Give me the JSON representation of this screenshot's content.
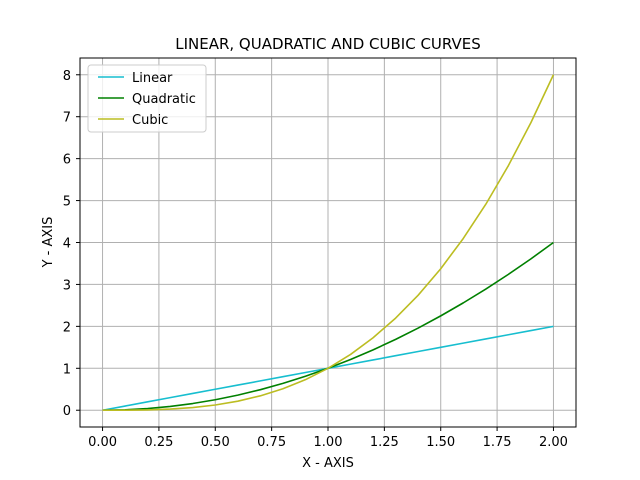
{
  "chart_data": {
    "type": "line",
    "title": "LINEAR, QUADRATIC AND CUBIC CURVES",
    "xlabel": "X - AXIS",
    "ylabel": "Y - AXIS",
    "xlim": [
      -0.1,
      2.1
    ],
    "ylim": [
      -0.4,
      8.4
    ],
    "xticks": [
      0.0,
      0.25,
      0.5,
      0.75,
      1.0,
      1.25,
      1.5,
      1.75,
      2.0
    ],
    "xtick_labels": [
      "0.00",
      "0.25",
      "0.50",
      "0.75",
      "1.00",
      "1.25",
      "1.50",
      "1.75",
      "2.00"
    ],
    "yticks": [
      0,
      1,
      2,
      3,
      4,
      5,
      6,
      7,
      8
    ],
    "ytick_labels": [
      "0",
      "1",
      "2",
      "3",
      "4",
      "5",
      "6",
      "7",
      "8"
    ],
    "grid": true,
    "legend_position": "top-left",
    "x": [
      0.0,
      0.1,
      0.2,
      0.3,
      0.4,
      0.5,
      0.6,
      0.7,
      0.8,
      0.9,
      1.0,
      1.1,
      1.2,
      1.3,
      1.4,
      1.5,
      1.6,
      1.7,
      1.8,
      1.9,
      2.0
    ],
    "series": [
      {
        "name": "Linear",
        "color": "#17becf",
        "values": [
          0.0,
          0.1,
          0.2,
          0.3,
          0.4,
          0.5,
          0.6,
          0.7,
          0.8,
          0.9,
          1.0,
          1.1,
          1.2,
          1.3,
          1.4,
          1.5,
          1.6,
          1.7,
          1.8,
          1.9,
          2.0
        ]
      },
      {
        "name": "Quadratic",
        "color": "#008000",
        "values": [
          0.0,
          0.01,
          0.04,
          0.09,
          0.16,
          0.25,
          0.36,
          0.49,
          0.64,
          0.81,
          1.0,
          1.21,
          1.44,
          1.69,
          1.96,
          2.25,
          2.56,
          2.89,
          3.24,
          3.61,
          4.0
        ]
      },
      {
        "name": "Cubic",
        "color": "#bcbd22",
        "values": [
          0.0,
          0.001,
          0.008,
          0.027,
          0.064,
          0.125,
          0.216,
          0.343,
          0.512,
          0.729,
          1.0,
          1.331,
          1.728,
          2.197,
          2.744,
          3.375,
          4.096,
          4.913,
          5.832,
          6.859,
          8.0
        ]
      }
    ]
  }
}
